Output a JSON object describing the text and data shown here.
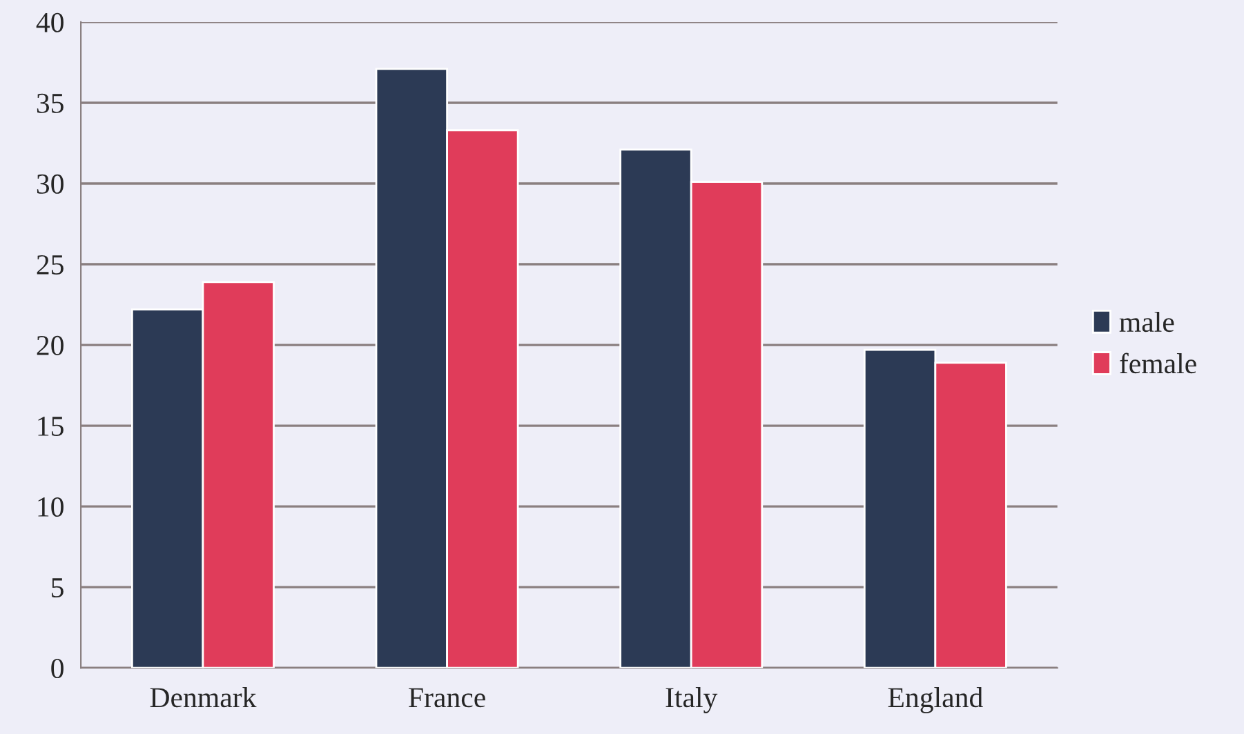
{
  "chart_data": {
    "type": "bar",
    "categories": [
      "Denmark",
      "France",
      "Italy",
      "England"
    ],
    "series": [
      {
        "name": "male",
        "color": "#2c3a55",
        "values": [
          22.2,
          37.1,
          32.1,
          19.7
        ]
      },
      {
        "name": "female",
        "color": "#e03c5a",
        "values": [
          23.9,
          33.3,
          30.1,
          18.9
        ]
      }
    ],
    "ylim": [
      0,
      40
    ],
    "yticks": [
      0,
      5,
      10,
      15,
      20,
      25,
      30,
      35,
      40
    ],
    "grid": "y",
    "legend": "right"
  }
}
